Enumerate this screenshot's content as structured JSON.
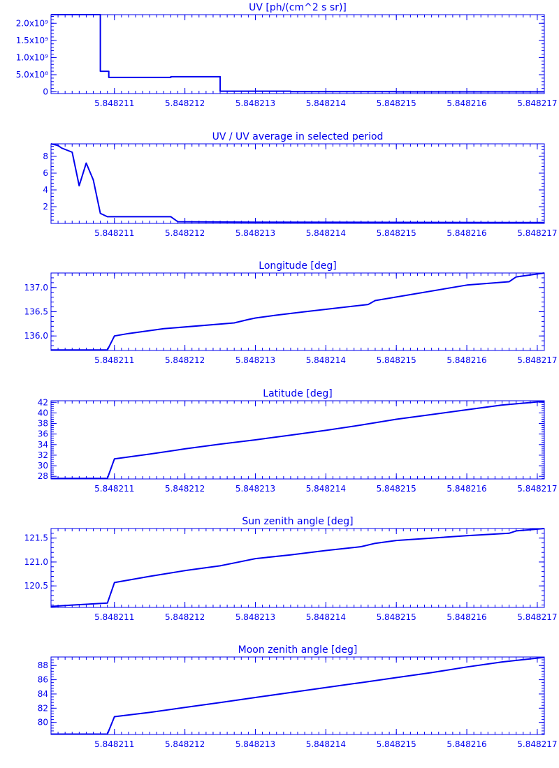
{
  "chart_data": [
    {
      "type": "line",
      "title": "UV [ph/(cm^2 s sr)]",
      "xlabel": "",
      "ylabel": "",
      "xlim": [
        5.8482101,
        5.8482171
      ],
      "xticks": [
        "5.848211",
        "5.848212",
        "5.848213",
        "5.848214",
        "5.848215",
        "5.848216",
        "5.848217"
      ],
      "yticks": [
        0,
        500000000,
        1000000000,
        1500000000,
        2000000000
      ],
      "ytick_labels": [
        "0",
        "5.0x10⁸",
        "1.0x10⁹",
        "1.5x10⁹",
        "2.0x10⁹"
      ],
      "ylim": [
        -50000000,
        2250000000
      ],
      "step": true,
      "series": [
        {
          "x": [
            5.8482101,
            5.84821074,
            5.8482108,
            5.84821086,
            5.84821092,
            5.8482113,
            5.8482118,
            5.8482125,
            5.8482135,
            5.848215,
            5.8482171
          ],
          "y": [
            2250000000,
            2250000000,
            600000000,
            600000000,
            420000000,
            420000000,
            440000000,
            20000000,
            5000000,
            0,
            0
          ]
        }
      ]
    },
    {
      "type": "line",
      "title": "UV / UV average in selected period",
      "xlabel": "",
      "ylabel": "",
      "xlim": [
        5.8482101,
        5.8482171
      ],
      "xticks": [
        "5.848211",
        "5.848212",
        "5.848213",
        "5.848214",
        "5.848215",
        "5.848216",
        "5.848217"
      ],
      "yticks": [
        2,
        4,
        6,
        8
      ],
      "ytick_labels": [
        "2",
        "4",
        "6",
        "8"
      ],
      "ylim": [
        0,
        9.5
      ],
      "series": [
        {
          "x": [
            5.8482101,
            5.8482102,
            5.84821025,
            5.8482104,
            5.8482105,
            5.8482106,
            5.8482107,
            5.8482108,
            5.8482109,
            5.848211,
            5.8482118,
            5.8482119,
            5.848213,
            5.8482171
          ],
          "y": [
            9.5,
            9.3,
            9.0,
            8.5,
            4.5,
            7.2,
            5.2,
            1.2,
            0.8,
            0.8,
            0.8,
            0.2,
            0.15,
            0.1
          ]
        }
      ]
    },
    {
      "type": "line",
      "title": "Longitude [deg]",
      "xlabel": "",
      "ylabel": "",
      "xlim": [
        5.8482101,
        5.8482171
      ],
      "xticks": [
        "5.848211",
        "5.848212",
        "5.848213",
        "5.848214",
        "5.848215",
        "5.848216",
        "5.848217"
      ],
      "yticks": [
        136.0,
        136.5,
        137.0
      ],
      "ytick_labels": [
        "136.0",
        "136.5",
        "137.0"
      ],
      "ylim": [
        135.7,
        137.3
      ],
      "series": [
        {
          "x": [
            5.8482101,
            5.8482109,
            5.848211,
            5.8482112,
            5.8482117,
            5.8482127,
            5.8482129,
            5.848213,
            5.8482133,
            5.8482137,
            5.8482146,
            5.8482147,
            5.848216,
            5.8482166,
            5.8482167,
            5.8482171
          ],
          "y": [
            135.71,
            135.71,
            136.0,
            136.05,
            136.15,
            136.27,
            136.34,
            136.37,
            136.43,
            136.5,
            136.65,
            136.73,
            137.05,
            137.12,
            137.22,
            137.3
          ]
        }
      ]
    },
    {
      "type": "line",
      "title": "Latitude [deg]",
      "xlabel": "",
      "ylabel": "",
      "xlim": [
        5.8482101,
        5.8482171
      ],
      "xticks": [
        "5.848211",
        "5.848212",
        "5.848213",
        "5.848214",
        "5.848215",
        "5.848216",
        "5.848217"
      ],
      "yticks": [
        28,
        30,
        32,
        34,
        36,
        38,
        40,
        42
      ],
      "ytick_labels": [
        "28",
        "30",
        "32",
        "34",
        "36",
        "38",
        "40",
        "42"
      ],
      "ylim": [
        27.5,
        42.3
      ],
      "series": [
        {
          "x": [
            5.8482101,
            5.8482109,
            5.848211,
            5.8482115,
            5.848212,
            5.8482125,
            5.848213,
            5.8482135,
            5.848214,
            5.8482145,
            5.848215,
            5.8482155,
            5.848216,
            5.8482165,
            5.8482171
          ],
          "y": [
            27.6,
            27.6,
            31.3,
            32.2,
            33.2,
            34.1,
            34.9,
            35.8,
            36.7,
            37.7,
            38.8,
            39.7,
            40.6,
            41.5,
            42.2
          ]
        }
      ]
    },
    {
      "type": "line",
      "title": "Sun zenith angle [deg]",
      "xlabel": "",
      "ylabel": "",
      "xlim": [
        5.8482101,
        5.8482171
      ],
      "xticks": [
        "5.848211",
        "5.848212",
        "5.848213",
        "5.848214",
        "5.848215",
        "5.848216",
        "5.848217"
      ],
      "yticks": [
        120.5,
        121.0,
        121.5
      ],
      "ytick_labels": [
        "120.5",
        "121.0",
        "121.5"
      ],
      "ylim": [
        120.05,
        121.7
      ],
      "series": [
        {
          "x": [
            5.8482101,
            5.8482104,
            5.8482109,
            5.848211,
            5.8482115,
            5.848212,
            5.8482125,
            5.8482127,
            5.848213,
            5.8482135,
            5.848214,
            5.8482145,
            5.8482147,
            5.848215,
            5.8482155,
            5.848216,
            5.8482166,
            5.8482167,
            5.8482171
          ],
          "y": [
            120.07,
            120.1,
            120.14,
            120.57,
            120.7,
            120.82,
            120.92,
            120.98,
            121.07,
            121.15,
            121.24,
            121.32,
            121.39,
            121.45,
            121.5,
            121.55,
            121.6,
            121.65,
            121.7
          ]
        }
      ]
    },
    {
      "type": "line",
      "title": "Moon zenith angle [deg]",
      "xlabel": "",
      "ylabel": "",
      "xlim": [
        5.8482101,
        5.8482171
      ],
      "xticks": [
        "5.848211",
        "5.848212",
        "5.848213",
        "5.848214",
        "5.848215",
        "5.848216",
        "5.848217"
      ],
      "yticks": [
        80,
        82,
        84,
        86,
        88
      ],
      "ytick_labels": [
        "80",
        "82",
        "84",
        "86",
        "88"
      ],
      "ylim": [
        78.3,
        89.2
      ],
      "series": [
        {
          "x": [
            5.8482101,
            5.8482109,
            5.848211,
            5.8482115,
            5.848212,
            5.8482125,
            5.848213,
            5.8482135,
            5.848214,
            5.8482145,
            5.848215,
            5.8482155,
            5.848216,
            5.8482165,
            5.8482171
          ],
          "y": [
            78.35,
            78.35,
            80.8,
            81.4,
            82.1,
            82.8,
            83.5,
            84.2,
            84.9,
            85.6,
            86.3,
            87.0,
            87.8,
            88.5,
            89.15
          ]
        }
      ]
    }
  ]
}
